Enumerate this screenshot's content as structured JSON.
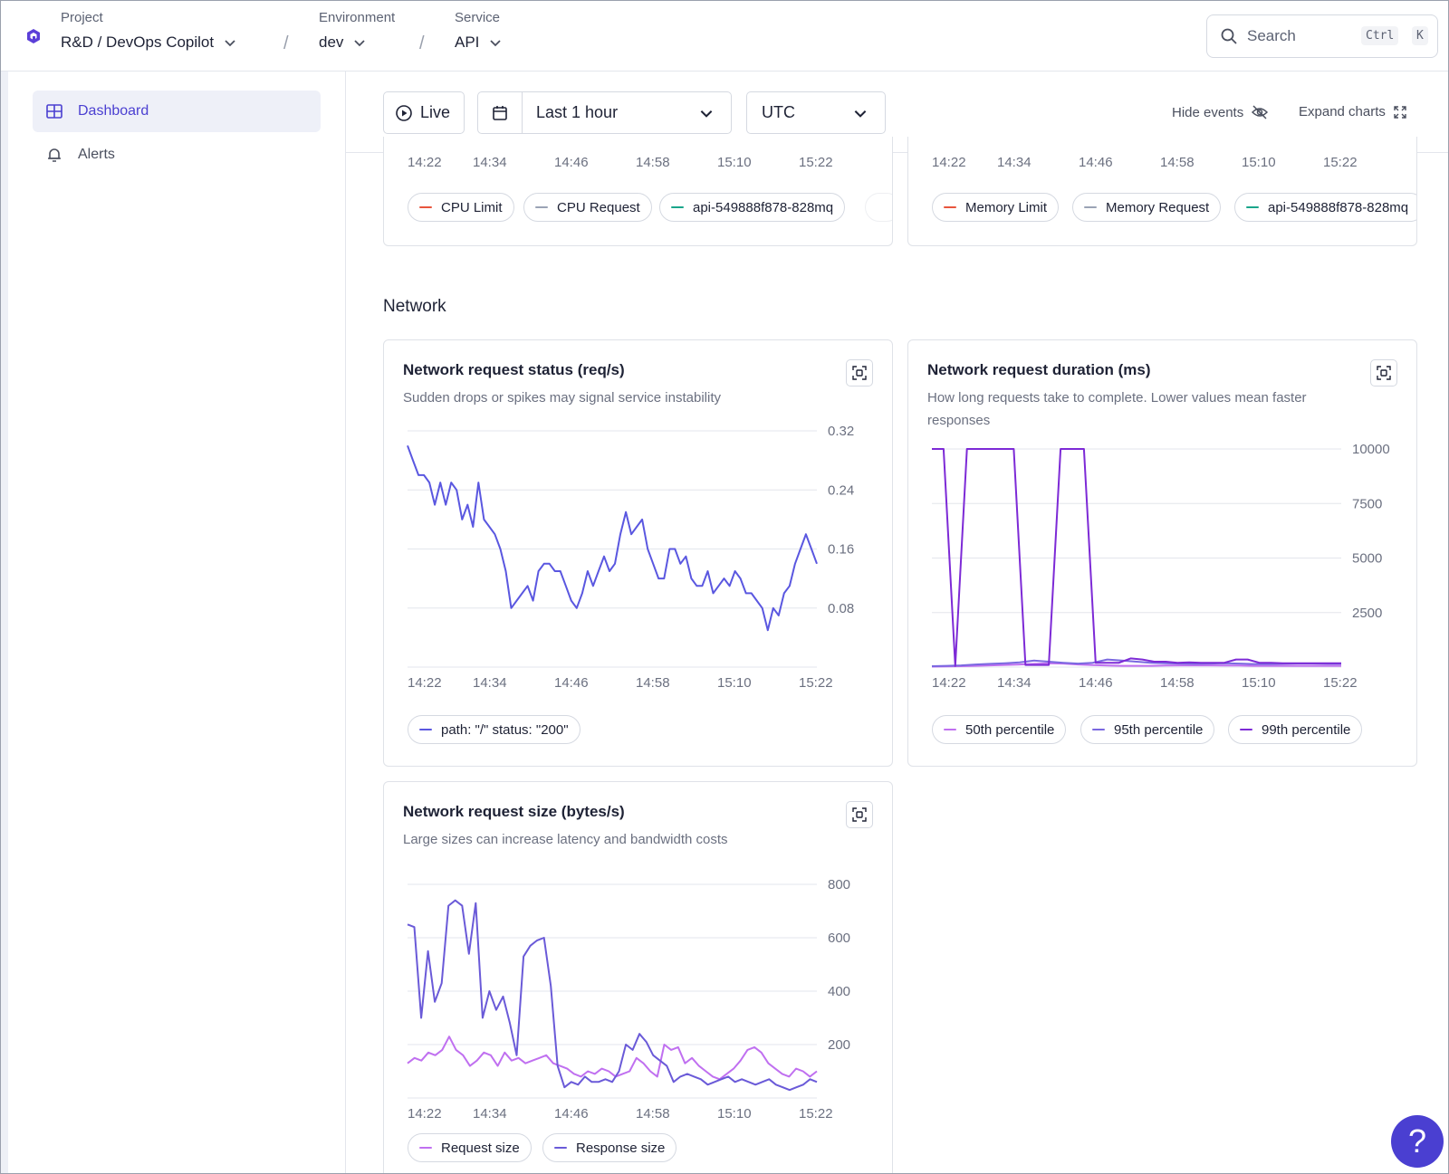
{
  "header": {
    "project_label": "Project",
    "project_value": "R&D / DevOps Copilot",
    "environment_label": "Environment",
    "environment_value": "dev",
    "service_label": "Service",
    "service_value": "API",
    "separator": "/",
    "search_placeholder": "Search",
    "search_kbd_1": "Ctrl",
    "search_kbd_2": "K"
  },
  "sidebar": {
    "items": [
      {
        "label": "Dashboard",
        "icon": "grid-icon",
        "active": true
      },
      {
        "label": "Alerts",
        "icon": "bell-icon",
        "active": false
      }
    ]
  },
  "toolbar": {
    "live_label": "Live",
    "range_label": "Last 1 hour",
    "timezone_label": "UTC",
    "hide_events_label": "Hide events",
    "expand_charts_label": "Expand charts"
  },
  "colors": {
    "accent": "#4a3fd1",
    "cpu_limit": "#e8553d",
    "cpu_request": "#9aa3b5",
    "pod": "#1aa58a",
    "status_200": "#5a57e0",
    "p50": "#c070f0",
    "p95": "#7a68e0",
    "p99": "#7d2ad6",
    "request_size": "#c070f0",
    "response_size": "#6a5ad8"
  },
  "top_cards": {
    "cpu_x_ticks": [
      "14:22",
      "14:34",
      "14:46",
      "14:58",
      "15:10",
      "15:22"
    ],
    "memory_x_ticks": [
      "14:22",
      "14:34",
      "14:46",
      "14:58",
      "15:10",
      "15:22"
    ],
    "cpu_legend": [
      "CPU Limit",
      "CPU Request",
      "api-549888f878-828mq"
    ],
    "memory_legend": [
      "Memory Limit",
      "Memory Request",
      "api-549888f878-828mq"
    ]
  },
  "network": {
    "section_title": "Network"
  },
  "chart_data": [
    {
      "type": "line",
      "title": "Network request status (req/s)",
      "subtitle": "Sudden drops or spikes may signal service instability",
      "x_ticks": [
        "14:22",
        "14:34",
        "14:46",
        "14:58",
        "15:10",
        "15:22"
      ],
      "y_ticks": [
        "0.32",
        "0.24",
        "0.16",
        "0.08"
      ],
      "ylim": [
        0,
        0.32
      ],
      "series": [
        {
          "name": "path: \"/\" status: \"200\"",
          "color": "#5a57e0",
          "values": [
            0.3,
            0.28,
            0.26,
            0.26,
            0.25,
            0.22,
            0.25,
            0.22,
            0.25,
            0.24,
            0.2,
            0.22,
            0.19,
            0.25,
            0.2,
            0.19,
            0.18,
            0.16,
            0.13,
            0.08,
            0.09,
            0.1,
            0.11,
            0.09,
            0.13,
            0.14,
            0.14,
            0.13,
            0.13,
            0.11,
            0.09,
            0.08,
            0.1,
            0.13,
            0.11,
            0.13,
            0.15,
            0.13,
            0.14,
            0.18,
            0.21,
            0.18,
            0.19,
            0.2,
            0.16,
            0.14,
            0.12,
            0.12,
            0.16,
            0.16,
            0.14,
            0.15,
            0.12,
            0.11,
            0.11,
            0.13,
            0.1,
            0.11,
            0.12,
            0.11,
            0.13,
            0.12,
            0.1,
            0.1,
            0.09,
            0.08,
            0.05,
            0.08,
            0.07,
            0.1,
            0.11,
            0.14,
            0.16,
            0.18,
            0.16,
            0.14
          ]
        }
      ]
    },
    {
      "type": "line",
      "title": "Network request duration (ms)",
      "subtitle": "How long requests take to complete. Lower values mean faster responses",
      "x_ticks": [
        "14:22",
        "14:34",
        "14:46",
        "14:58",
        "15:10",
        "15:22"
      ],
      "y_ticks": [
        "10000",
        "7500",
        "5000",
        "2500"
      ],
      "ylim": [
        0,
        10000
      ],
      "series": [
        {
          "name": "50th percentile",
          "color": "#c070f0",
          "values": [
            20,
            30,
            40,
            60,
            80,
            100,
            120,
            150,
            180,
            160,
            120,
            90,
            70,
            60,
            60,
            60,
            70,
            80,
            80,
            80,
            70,
            70,
            60,
            60,
            60,
            60,
            60,
            60,
            60
          ]
        },
        {
          "name": "95th percentile",
          "color": "#7a68e0",
          "values": [
            40,
            60,
            80,
            120,
            150,
            180,
            220,
            300,
            250,
            200,
            160,
            200,
            350,
            300,
            250,
            200,
            180,
            160,
            150,
            160,
            180,
            160,
            140,
            140,
            150,
            160,
            160,
            150,
            150
          ]
        },
        {
          "name": "99th percentile",
          "color": "#7d2ad6",
          "values": [
            10000,
            10000,
            50,
            10000,
            10000,
            10000,
            10000,
            10000,
            100,
            100,
            100,
            10000,
            10000,
            10000,
            200,
            200,
            200,
            400,
            350,
            250,
            250,
            200,
            220,
            200,
            200,
            200,
            350,
            350,
            200,
            200,
            180,
            180,
            180,
            180,
            180,
            180
          ]
        }
      ]
    },
    {
      "type": "line",
      "title": "Network request size (bytes/s)",
      "subtitle": "Large sizes can increase latency and bandwidth costs",
      "x_ticks": [
        "14:22",
        "14:34",
        "14:46",
        "14:58",
        "15:10",
        "15:22"
      ],
      "y_ticks": [
        "800",
        "600",
        "400",
        "200"
      ],
      "ylim": [
        0,
        800
      ],
      "series": [
        {
          "name": "Request size",
          "color": "#c070f0",
          "values": [
            130,
            150,
            140,
            170,
            160,
            180,
            230,
            180,
            160,
            120,
            140,
            170,
            160,
            120,
            170,
            140,
            150,
            130,
            140,
            150,
            160,
            130,
            120,
            110,
            90,
            80,
            100,
            90,
            110,
            100,
            80,
            90,
            100,
            150,
            130,
            100,
            80,
            200,
            180,
            190,
            130,
            150,
            120,
            100,
            80,
            70,
            90,
            110,
            140,
            180,
            190,
            170,
            130,
            110,
            90,
            80,
            110,
            100,
            80,
            100
          ]
        },
        {
          "name": "Response size",
          "color": "#6a5ad8",
          "values": [
            650,
            640,
            300,
            550,
            360,
            430,
            720,
            740,
            720,
            540,
            730,
            300,
            400,
            330,
            380,
            280,
            160,
            530,
            570,
            590,
            600,
            420,
            120,
            40,
            60,
            50,
            80,
            60,
            60,
            70,
            60,
            100,
            200,
            180,
            240,
            210,
            160,
            140,
            120,
            60,
            80,
            90,
            80,
            70,
            50,
            60,
            70,
            80,
            60,
            70,
            60,
            50,
            60,
            70,
            50,
            40,
            30,
            40,
            50,
            70,
            60
          ]
        }
      ]
    }
  ]
}
